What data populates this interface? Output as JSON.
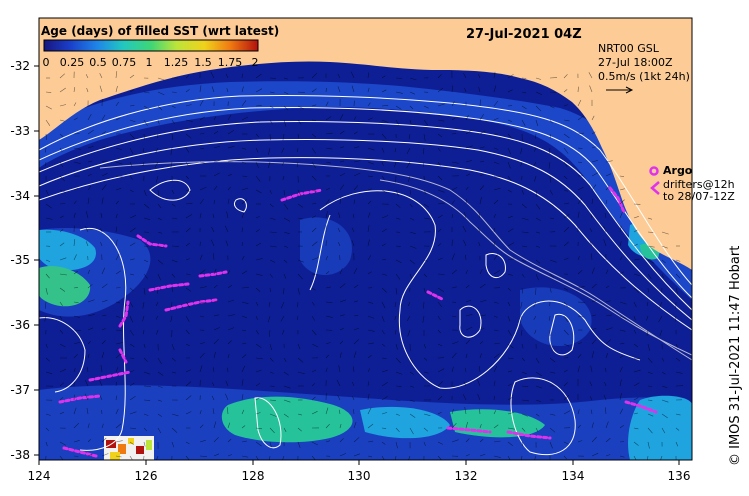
{
  "map": {
    "title": "27-Jul-2021 04Z",
    "credit": "© IMOS 31-Jul-2021 11:47 Hobart",
    "lon_ticks": [
      "124",
      "126",
      "128",
      "130",
      "132",
      "134",
      "136"
    ],
    "lat_ticks": [
      "-32",
      "-33",
      "-34",
      "-35",
      "-36",
      "-37",
      "-38"
    ]
  },
  "colorbar": {
    "title": "Age (days) of filled SST (wrt latest)",
    "tick_labels": [
      "0",
      "0.25",
      "0.5",
      "0.75",
      "1",
      "1.25",
      "1.5",
      "1.75",
      "2"
    ],
    "range": [
      0,
      2
    ],
    "colors": [
      "#18167e",
      "#1a3ec8",
      "#1f86e8",
      "#22c8c0",
      "#3fd676",
      "#bde43a",
      "#f0d21c",
      "#f07a12",
      "#b2120e"
    ]
  },
  "legend": {
    "product": "NRT00 GSL",
    "time": "27-Jul 18:00Z",
    "scale": "0.5m/s (1kt 24h)",
    "argo_label": "Argo",
    "drifters_line1": "drifters@12h",
    "drifters_line2": "to 28/07-12Z"
  },
  "colors": {
    "land": "#fdcc96",
    "ocean_base": "#0e1f96",
    "patch_blue": "#1f4fd2",
    "patch_cyan": "#1fa4e0",
    "patch_green": "#26c29a",
    "contour": "#ffffff",
    "drifter": "#e032ec"
  }
}
